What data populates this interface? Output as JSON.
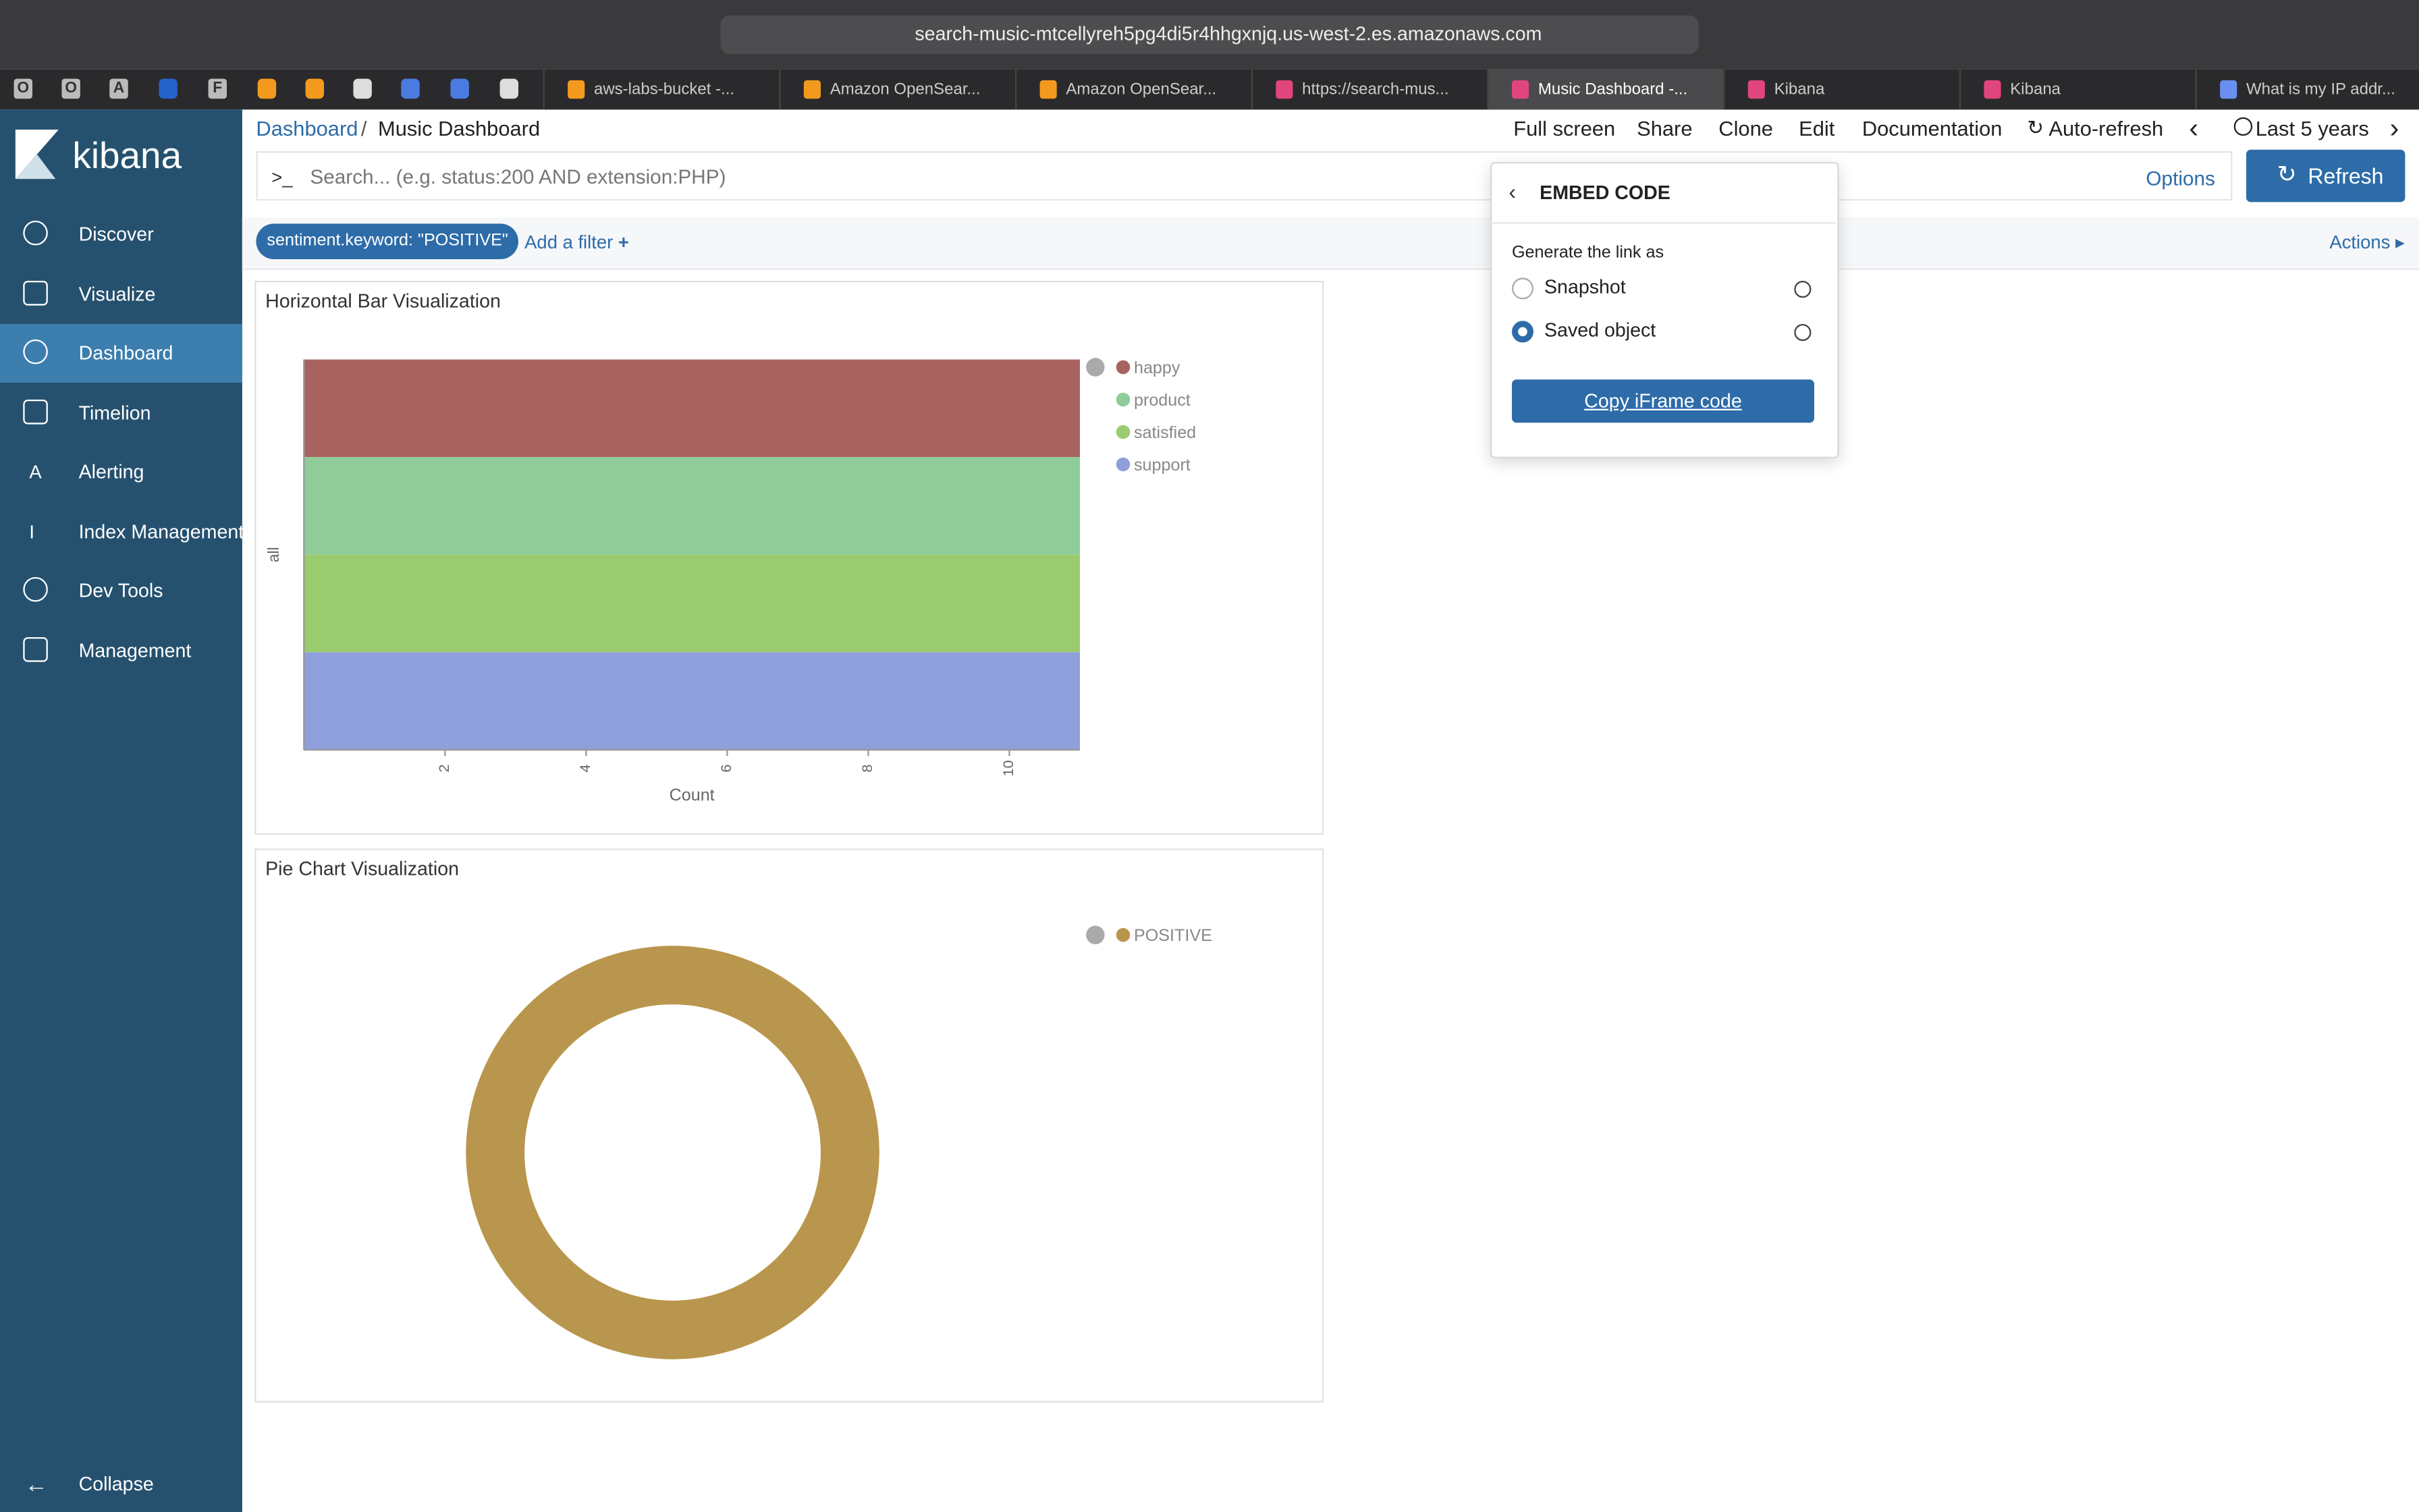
{
  "browser": {
    "url": "search-music-mtcellyreh5pg4di5r4hhgxnjq.us-west-2.es.amazonaws.com",
    "pinned": [
      "O",
      "O",
      "A",
      "F"
    ],
    "tabs": [
      "aws-labs-bucket -...",
      "Amazon OpenSear...",
      "Amazon OpenSear...",
      "https://search-mus...",
      "Music Dashboard -...",
      "Kibana",
      "Kibana",
      "What is my IP addr..."
    ]
  },
  "sidebar": {
    "brand": "kibana",
    "nav": [
      {
        "label": "Discover"
      },
      {
        "label": "Visualize"
      },
      {
        "label": "Dashboard"
      },
      {
        "label": "Timelion"
      },
      {
        "label": "Alerting",
        "icon": "A"
      },
      {
        "label": "Index Management",
        "icon": "I"
      },
      {
        "label": "Dev Tools"
      },
      {
        "label": "Management"
      }
    ],
    "collapse": "Collapse"
  },
  "breadcrumbs": {
    "items": [
      "Dashboard",
      "Music Dashboard"
    ],
    "separator": "/"
  },
  "menu": {
    "items": [
      "Full screen",
      "Share",
      "Clone",
      "Edit",
      "Documentation",
      "Auto-refresh"
    ],
    "time": "Last 5 years"
  },
  "search": {
    "prompt": ">_",
    "placeholder": "Search... (e.g. status:200 AND extension:PHP)",
    "options": "Options",
    "refresh": "Refresh"
  },
  "filter": {
    "pill": "sentiment.keyword: \"POSITIVE\"",
    "add": "Add a filter",
    "actions": "Actions"
  },
  "popover": {
    "title": "EMBED CODE",
    "label": "Generate the link as",
    "options": [
      "Snapshot",
      "Saved object"
    ],
    "selected": 1,
    "button": "Copy iFrame code"
  },
  "chart_data": [
    {
      "type": "bar",
      "orientation": "horizontal",
      "title": "Horizontal Bar Visualization",
      "categories": [
        "all"
      ],
      "series": [
        {
          "name": "happy",
          "color": "#a86360",
          "values": [
            11
          ]
        },
        {
          "name": "product",
          "color": "#90cb9a",
          "values": [
            11
          ]
        },
        {
          "name": "satisfied",
          "color": "#9bcb6f",
          "values": [
            11
          ]
        },
        {
          "name": "support",
          "color": "#8f9fdb",
          "values": [
            11
          ]
        }
      ],
      "xlabel": "Count",
      "xlim": [
        0,
        11
      ],
      "xticks": [
        2,
        4,
        6,
        8,
        10
      ]
    },
    {
      "type": "pie",
      "title": "Pie Chart Visualization",
      "donut": true,
      "categories": [
        "POSITIVE"
      ],
      "values": [
        100
      ],
      "colors": [
        "#b9964d"
      ]
    }
  ]
}
